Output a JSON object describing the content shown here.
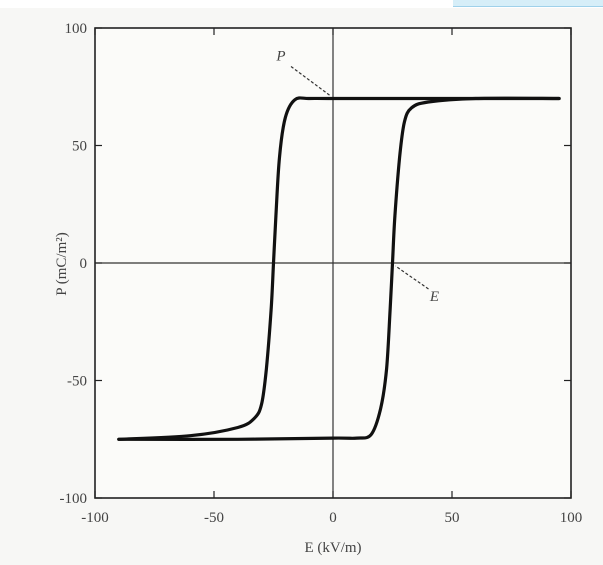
{
  "chart_data": {
    "type": "line",
    "title": "",
    "xlabel": "E (kV/m)",
    "ylabel": "P (mC/m²)",
    "xlim": [
      -100,
      100
    ],
    "ylim": [
      -100,
      100
    ],
    "x_ticks": [
      "-100",
      "-50",
      "0",
      "50",
      "100"
    ],
    "y_ticks": [
      "100",
      "50",
      "0",
      "-50",
      "-100"
    ],
    "grid": false,
    "series": [
      {
        "points": [
          [
            95,
            70
          ],
          [
            60,
            70
          ],
          [
            40,
            68.5
          ],
          [
            33,
            66
          ],
          [
            30,
            60
          ],
          [
            28,
            45
          ],
          [
            26,
            20
          ],
          [
            25,
            0
          ],
          [
            24,
            -20
          ],
          [
            22.5,
            -45
          ],
          [
            20,
            -62
          ],
          [
            16,
            -73
          ],
          [
            10,
            -74.5
          ],
          [
            0,
            -74.5
          ],
          [
            -40,
            -75
          ],
          [
            -90,
            -75
          ]
        ]
      },
      {
        "points": [
          [
            -90,
            -75
          ],
          [
            -60,
            -73.5
          ],
          [
            -40,
            -70
          ],
          [
            -33,
            -66
          ],
          [
            -30,
            -60
          ],
          [
            -28,
            -45
          ],
          [
            -26,
            -20
          ],
          [
            -25,
            0
          ],
          [
            -24,
            20
          ],
          [
            -22.5,
            45
          ],
          [
            -20,
            62
          ],
          [
            -16,
            69.5
          ],
          [
            -10,
            70
          ],
          [
            0,
            70
          ],
          [
            40,
            70
          ],
          [
            95,
            70
          ]
        ]
      }
    ],
    "annotations": [
      {
        "text": "P",
        "points_to": [
          0,
          70
        ]
      },
      {
        "text": "E",
        "points_to": [
          25,
          0
        ]
      }
    ]
  }
}
